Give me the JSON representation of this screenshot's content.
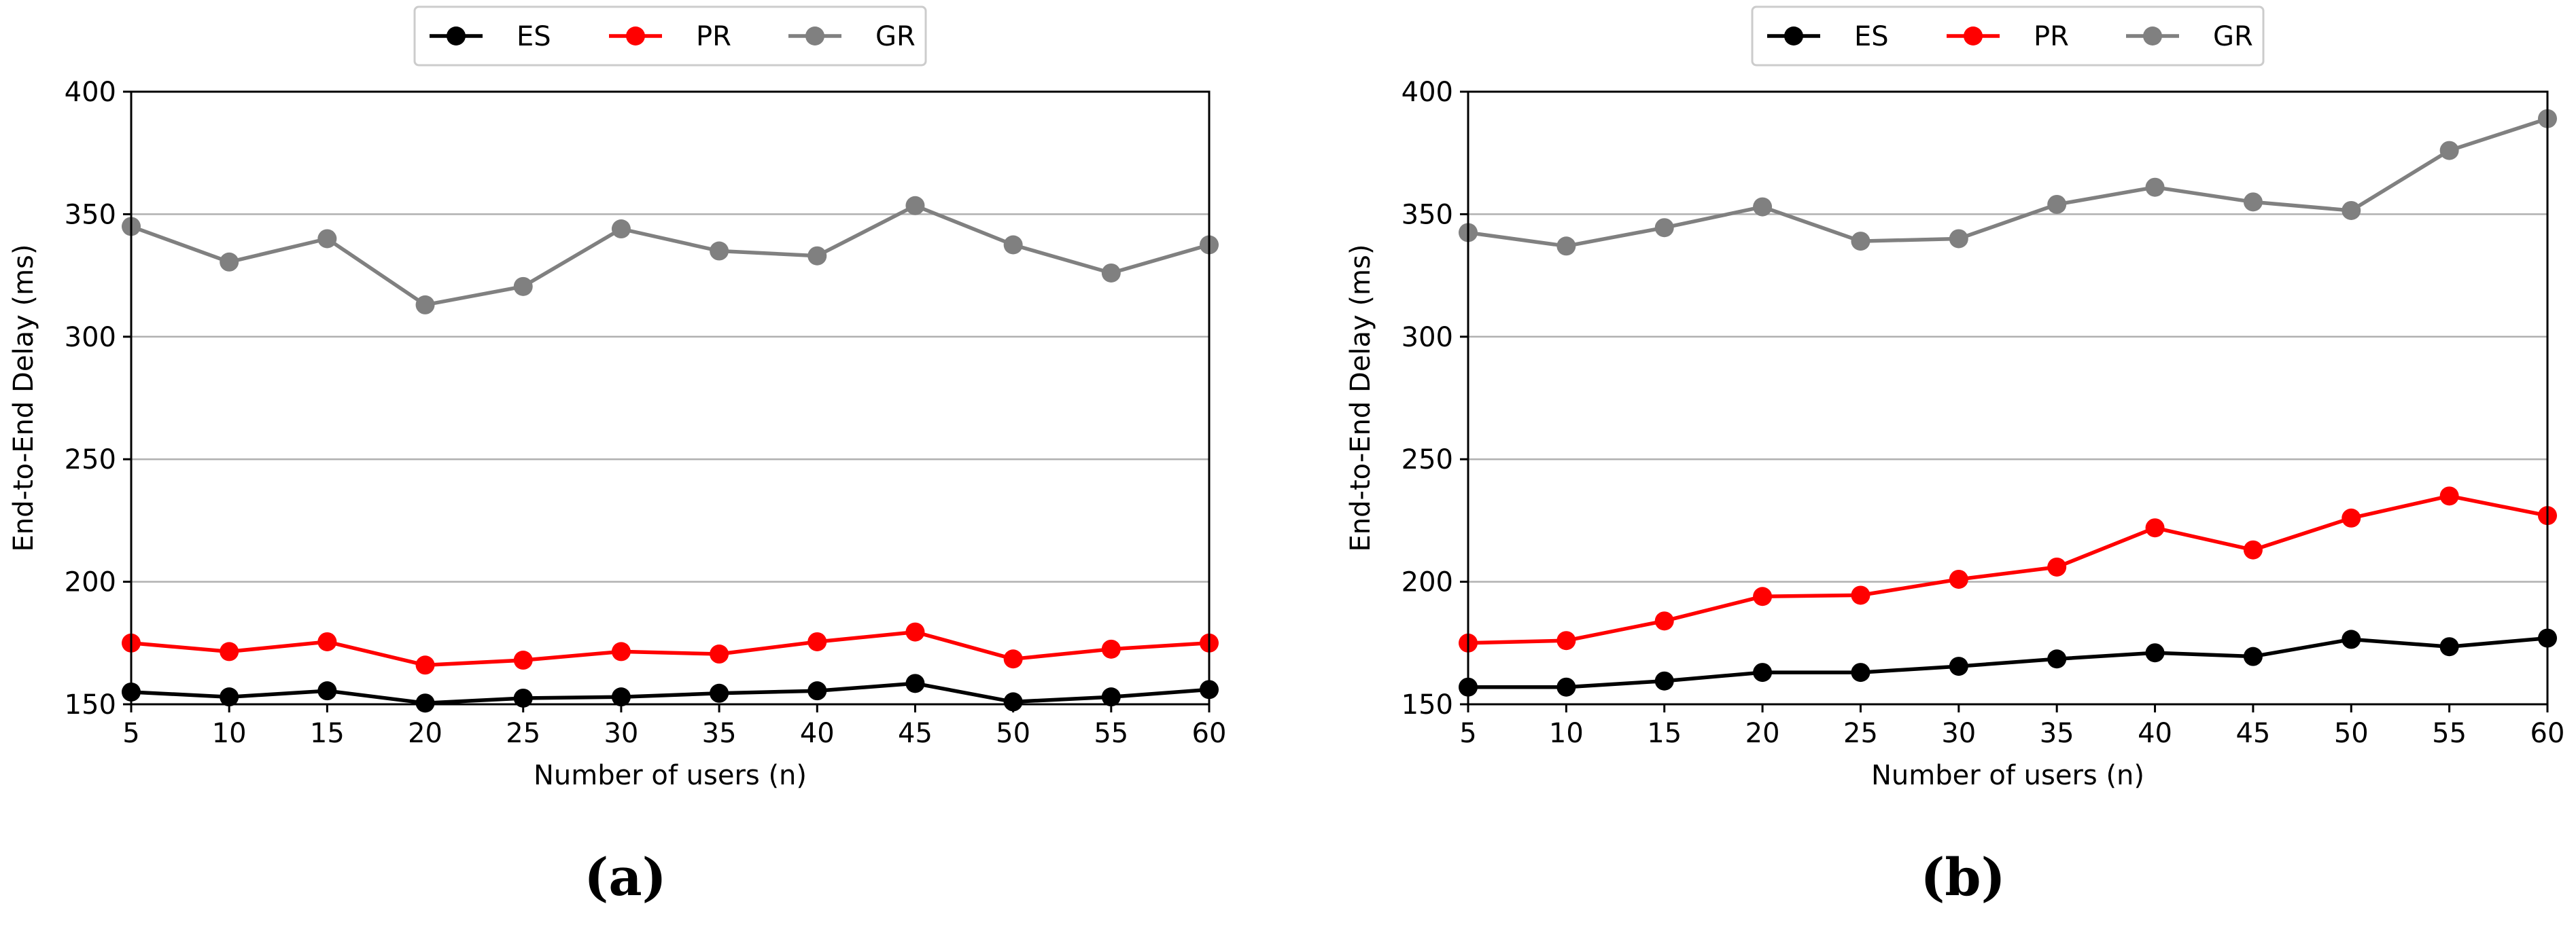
{
  "chart_data": [
    {
      "type": "line",
      "xlabel": "Number of users (n)",
      "ylabel": "End-to-End Delay (ms)",
      "caption": "(a)",
      "xlim": [
        5,
        60
      ],
      "ylim": [
        150,
        400
      ],
      "x": [
        5,
        10,
        15,
        20,
        25,
        30,
        35,
        40,
        45,
        50,
        55,
        60
      ],
      "xticks": [
        "5",
        "10",
        "15",
        "20",
        "25",
        "30",
        "35",
        "40",
        "45",
        "50",
        "55",
        "60"
      ],
      "yticks": [
        "150",
        "200",
        "250",
        "300",
        "350",
        "400"
      ],
      "grid": "horizontal",
      "legend_position": "top-center, outside",
      "series": [
        {
          "name": "ES",
          "color": "#000000",
          "values": [
            155,
            153,
            155.5,
            150.5,
            152.5,
            153,
            154.5,
            155.5,
            158.5,
            151,
            153,
            156
          ]
        },
        {
          "name": "PR",
          "color": "#ff0000",
          "values": [
            175,
            171.5,
            175.5,
            166,
            168,
            171.5,
            170.5,
            175.5,
            179.5,
            168.5,
            172.5,
            175
          ]
        },
        {
          "name": "GR",
          "color": "#808080",
          "values": [
            345,
            330.5,
            340,
            313,
            320.5,
            344,
            335,
            333,
            353.5,
            337.5,
            326,
            337.5
          ]
        }
      ]
    },
    {
      "type": "line",
      "xlabel": "Number of users (n)",
      "ylabel": "End-to-End Delay (ms)",
      "caption": "(b)",
      "xlim": [
        5,
        60
      ],
      "ylim": [
        150,
        400
      ],
      "x": [
        5,
        10,
        15,
        20,
        25,
        30,
        35,
        40,
        45,
        50,
        55,
        60
      ],
      "xticks": [
        "5",
        "10",
        "15",
        "20",
        "25",
        "30",
        "35",
        "40",
        "45",
        "50",
        "55",
        "60"
      ],
      "yticks": [
        "150",
        "200",
        "250",
        "300",
        "350",
        "400"
      ],
      "grid": "horizontal",
      "legend_position": "top-center, outside",
      "series": [
        {
          "name": "ES",
          "color": "#000000",
          "values": [
            157,
            157,
            159.5,
            163,
            163,
            165.5,
            168.5,
            171,
            169.5,
            176.5,
            173.5,
            177
          ]
        },
        {
          "name": "PR",
          "color": "#ff0000",
          "values": [
            175,
            176,
            184,
            194,
            194.5,
            201,
            206,
            222,
            213,
            226,
            235,
            227
          ]
        },
        {
          "name": "GR",
          "color": "#808080",
          "values": [
            342.5,
            337,
            344.5,
            353,
            339,
            340,
            354,
            361,
            355,
            351.5,
            376,
            389
          ]
        }
      ]
    }
  ]
}
